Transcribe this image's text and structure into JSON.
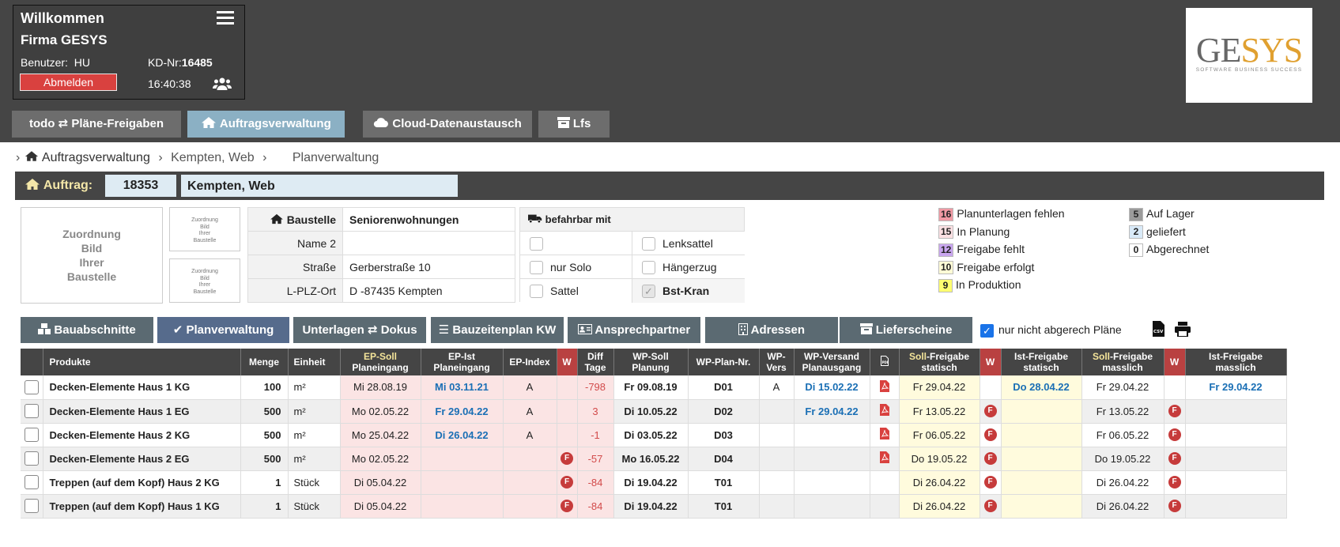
{
  "header": {
    "welcome": "Willkommen",
    "company": "Firma GESYS",
    "user_label": "Benutzer:",
    "user": "HU",
    "kd_label": "KD-Nr:",
    "kd_no": "16485",
    "logout": "Abmelden",
    "time": "16:40:38"
  },
  "logo": {
    "part1": "GE",
    "part2": "SYS",
    "tagline": "SOFTWARE BUSINESS SUCCESS"
  },
  "nav": {
    "tabs": [
      {
        "label": "todo ⇄ Pläne-Freigaben"
      },
      {
        "label": "Auftragsverwaltung"
      },
      {
        "label": "Cloud-Datenaustausch"
      },
      {
        "label": "Lfs"
      }
    ]
  },
  "breadcrumb": {
    "home": "Auftragsverwaltung",
    "project": "Kempten, Web",
    "current": "Planverwaltung"
  },
  "order": {
    "label": "Auftrag:",
    "number": "18353",
    "name": "Kempten, Web"
  },
  "images": {
    "placeholder_big": [
      "Zuordnung",
      "Bild",
      "Ihrer",
      "Baustelle"
    ],
    "placeholder_small": [
      "Zuordnung",
      "Bild",
      "Ihrer",
      "Baustelle"
    ]
  },
  "site": {
    "label": "Baustelle",
    "value": "Seniorenwohnungen",
    "rows": [
      {
        "label": "Name 2",
        "value": ""
      },
      {
        "label": "Straße",
        "value": "Gerberstraße 10"
      },
      {
        "label": "L-PLZ-Ort",
        "value": "D -87435 Kempten"
      }
    ]
  },
  "vehicles": {
    "title": "befahrbar mit",
    "options": [
      {
        "label": "",
        "checked": false
      },
      {
        "label": "Lenksattel",
        "checked": false
      },
      {
        "label": "nur Solo",
        "checked": false
      },
      {
        "label": "Hängerzug",
        "checked": false
      },
      {
        "label": "Sattel",
        "checked": false
      },
      {
        "label": "Bst-Kran",
        "checked": true
      }
    ]
  },
  "legend": {
    "left": [
      {
        "n": "16",
        "label": "Planunterlagen fehlen",
        "color": "#f09aa4"
      },
      {
        "n": "15",
        "label": "In Planung",
        "color": "#fbe0e3"
      },
      {
        "n": "12",
        "label": "Freigabe fehlt",
        "color": "#c9a6ef"
      },
      {
        "n": "10",
        "label": "Freigabe erfolgt",
        "color": "#fffbd6"
      },
      {
        "n": "9",
        "label": "In Produktion",
        "color": "#ffff70"
      }
    ],
    "right": [
      {
        "n": "5",
        "label": "Auf Lager",
        "color": "#9b9b9b"
      },
      {
        "n": "2",
        "label": "geliefert",
        "color": "#d9eaf8"
      },
      {
        "n": "0",
        "label": "Abgerechnet",
        "color": "#ffffff"
      }
    ]
  },
  "subnav": {
    "buttons": [
      {
        "label": "Bauabschnitte"
      },
      {
        "label": "Planverwaltung"
      },
      {
        "label": "Unterlagen ⇄ Dokus"
      },
      {
        "label": "Bauzeitenplan KW"
      },
      {
        "label": "Ansprechpartner"
      },
      {
        "label": "Adressen"
      },
      {
        "label": "Lieferscheine"
      }
    ],
    "filter_label": "nur nicht abgerech Pläne"
  },
  "table": {
    "headers": {
      "produkte": "Produkte",
      "menge": "Menge",
      "einheit": "Einheit",
      "ep_soll_a": "EP-Soll",
      "ep_soll_b": "Planeingang",
      "ep_ist_a": "EP-Ist",
      "ep_ist_b": "Planeingang",
      "ep_index": "EP-Index",
      "w": "W",
      "diff_a": "Diff",
      "diff_b": "Tage",
      "wp_soll_a": "WP-Soll",
      "wp_soll_b": "Planung",
      "wp_plan": "WP-Plan-Nr.",
      "wp_vers_a": "WP-",
      "wp_vers_b": "Vers",
      "wp_versand_a": "WP-Versand",
      "wp_versand_b": "Planausgang",
      "soll_frei_stat_soll": "Soll",
      "soll_frei_stat_a": "-Freigabe",
      "soll_frei_stat_b": "statisch",
      "ist_frei_stat_a": "Ist-Freigabe",
      "ist_frei_stat_b": "statisch",
      "soll_frei_mass_soll": "Soll",
      "soll_frei_mass_a": "-Freigabe",
      "soll_frei_mass_b": "masslich",
      "ist_frei_mass_a": "Ist-Freigabe",
      "ist_frei_mass_b": "masslich"
    },
    "rows": [
      {
        "produkt": "Decken-Elemente Haus 1 KG",
        "menge": "100",
        "einheit": "m²",
        "ep_soll": "Mi 28.08.19",
        "ep_ist": "Mi 03.11.21",
        "ep_index": "A",
        "w1": "",
        "diff": "-798",
        "wp_soll": "Fr 09.08.19",
        "wp_plan": "D01",
        "wp_vers": "A",
        "wp_versand": "Di 15.02.22",
        "pdf": true,
        "soll_stat": "Fr 29.04.22",
        "w2": "",
        "ist_stat": "Do 28.04.22",
        "soll_mass": "Fr 29.04.22",
        "w3": "",
        "ist_mass": "Fr 29.04.22"
      },
      {
        "produkt": "Decken-Elemente Haus 1 EG",
        "menge": "500",
        "einheit": "m²",
        "ep_soll": "Mo 02.05.22",
        "ep_ist": "Fr 29.04.22",
        "ep_index": "A",
        "w1": "",
        "diff": "3",
        "wp_soll": "Di 10.05.22",
        "wp_plan": "D02",
        "wp_vers": "",
        "wp_versand": "Fr 29.04.22",
        "pdf": true,
        "soll_stat": "Fr 13.05.22",
        "w2": "F",
        "ist_stat": "",
        "soll_mass": "Fr 13.05.22",
        "w3": "F",
        "ist_mass": ""
      },
      {
        "produkt": "Decken-Elemente Haus 2 KG",
        "menge": "500",
        "einheit": "m²",
        "ep_soll": "Mo 25.04.22",
        "ep_ist": "Di 26.04.22",
        "ep_index": "A",
        "w1": "",
        "diff": "-1",
        "wp_soll": "Di 03.05.22",
        "wp_plan": "D03",
        "wp_vers": "",
        "wp_versand": "",
        "pdf": true,
        "soll_stat": "Fr 06.05.22",
        "w2": "F",
        "ist_stat": "",
        "soll_mass": "Fr 06.05.22",
        "w3": "F",
        "ist_mass": ""
      },
      {
        "produkt": "Decken-Elemente Haus 2 EG",
        "menge": "500",
        "einheit": "m²",
        "ep_soll": "Mo 02.05.22",
        "ep_ist": "",
        "ep_index": "",
        "w1": "F",
        "diff": "-57",
        "wp_soll": "Mo 16.05.22",
        "wp_plan": "D04",
        "wp_vers": "",
        "wp_versand": "",
        "pdf": true,
        "soll_stat": "Do 19.05.22",
        "w2": "F",
        "ist_stat": "",
        "soll_mass": "Do 19.05.22",
        "w3": "F",
        "ist_mass": ""
      },
      {
        "produkt": "Treppen (auf dem Kopf) Haus 2 KG",
        "menge": "1",
        "einheit": "Stück",
        "ep_soll": "Di 05.04.22",
        "ep_ist": "",
        "ep_index": "",
        "w1": "F",
        "diff": "-84",
        "wp_soll": "Di 19.04.22",
        "wp_plan": "T01",
        "wp_vers": "",
        "wp_versand": "",
        "pdf": false,
        "soll_stat": "Di 26.04.22",
        "w2": "F",
        "ist_stat": "",
        "soll_mass": "Di 26.04.22",
        "w3": "F",
        "ist_mass": ""
      },
      {
        "produkt": "Treppen (auf dem Kopf) Haus 1 KG",
        "menge": "1",
        "einheit": "Stück",
        "ep_soll": "Di 05.04.22",
        "ep_ist": "",
        "ep_index": "",
        "w1": "F",
        "diff": "-84",
        "wp_soll": "Di 19.04.22",
        "wp_plan": "T01",
        "wp_vers": "",
        "wp_versand": "",
        "pdf": false,
        "soll_stat": "Di 26.04.22",
        "w2": "F",
        "ist_stat": "",
        "soll_mass": "Di 26.04.22",
        "w3": "F",
        "ist_mass": ""
      }
    ]
  }
}
